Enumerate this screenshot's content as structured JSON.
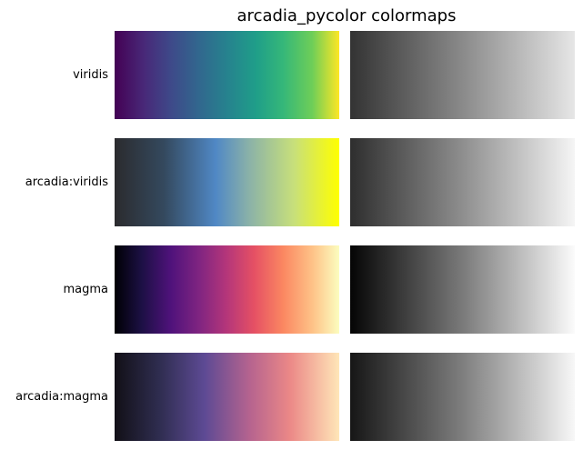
{
  "chart_data": {
    "type": "heatmap",
    "title": "arcadia_pycolor colormaps",
    "rows": [
      {
        "label": "viridis",
        "stops": [
          [
            0,
            "#440154"
          ],
          [
            0.13,
            "#482878"
          ],
          [
            0.25,
            "#3e4989"
          ],
          [
            0.38,
            "#31688e"
          ],
          [
            0.5,
            "#26828e"
          ],
          [
            0.63,
            "#1f9e89"
          ],
          [
            0.75,
            "#35b779"
          ],
          [
            0.88,
            "#6ece58"
          ],
          [
            1,
            "#fde725"
          ]
        ],
        "gray_stops": [
          [
            0,
            "#333333"
          ],
          [
            0.5,
            "#8a8a8a"
          ],
          [
            1,
            "#e6e6e6"
          ]
        ]
      },
      {
        "label": "arcadia:viridis",
        "stops": [
          [
            0,
            "#2b2b2e"
          ],
          [
            0.22,
            "#34495e"
          ],
          [
            0.45,
            "#5088c5"
          ],
          [
            0.6,
            "#8bb2a8"
          ],
          [
            0.8,
            "#c8e07a"
          ],
          [
            1,
            "#ffff00"
          ]
        ],
        "gray_stops": [
          [
            0,
            "#2e2e2e"
          ],
          [
            0.5,
            "#8e8e8e"
          ],
          [
            1,
            "#f5f5f5"
          ]
        ]
      },
      {
        "label": "magma",
        "stops": [
          [
            0,
            "#000004"
          ],
          [
            0.12,
            "#1c1044"
          ],
          [
            0.25,
            "#4f127b"
          ],
          [
            0.38,
            "#812581"
          ],
          [
            0.5,
            "#b5367a"
          ],
          [
            0.62,
            "#e55064"
          ],
          [
            0.75,
            "#fb8761"
          ],
          [
            0.88,
            "#fec287"
          ],
          [
            1,
            "#fcfdbf"
          ]
        ],
        "gray_stops": [
          [
            0,
            "#050505"
          ],
          [
            0.5,
            "#7a7a7a"
          ],
          [
            1,
            "#fbfbfb"
          ]
        ]
      },
      {
        "label": "arcadia:magma",
        "stops": [
          [
            0,
            "#121017"
          ],
          [
            0.2,
            "#2f2d50"
          ],
          [
            0.4,
            "#5d4a94"
          ],
          [
            0.6,
            "#b5638f"
          ],
          [
            0.78,
            "#eb8887"
          ],
          [
            1,
            "#ffe6b8"
          ]
        ],
        "gray_stops": [
          [
            0,
            "#161616"
          ],
          [
            0.5,
            "#7e7e7e"
          ],
          [
            1,
            "#f7f7f7"
          ]
        ]
      }
    ]
  }
}
